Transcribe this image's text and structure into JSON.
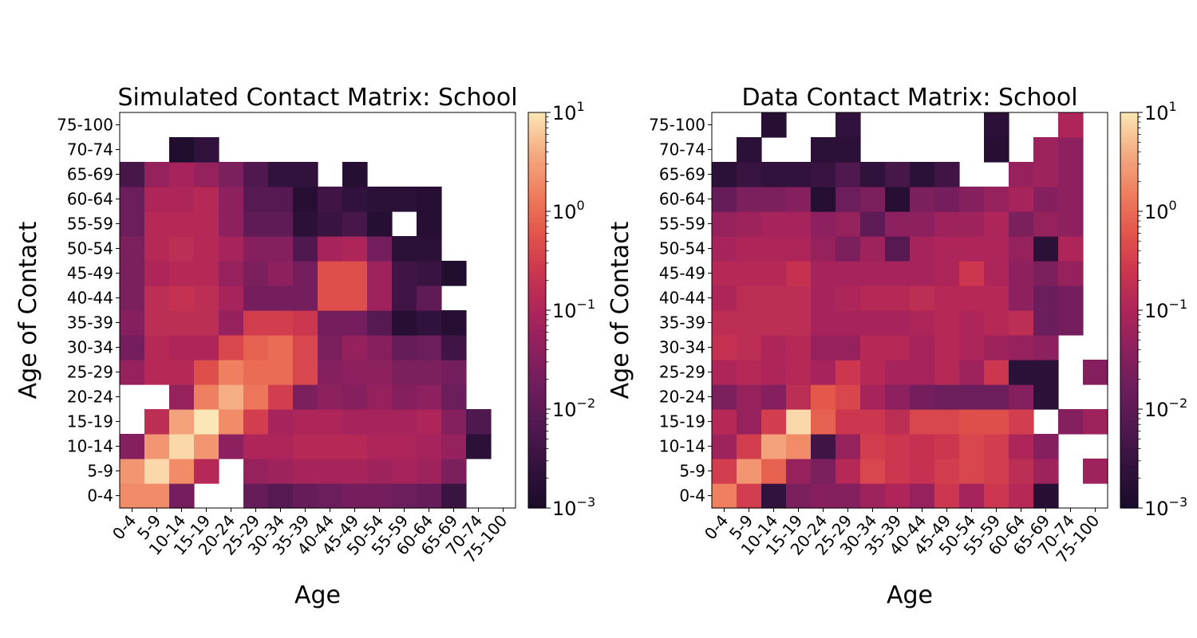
{
  "chart_data": [
    {
      "type": "heatmap",
      "title": "Simulated Contact Matrix: School",
      "xlabel": "Age",
      "ylabel": "Age of Contact",
      "categories": [
        "0-4",
        "5-9",
        "10-14",
        "15-19",
        "20-24",
        "25-29",
        "30-34",
        "35-39",
        "40-44",
        "45-49",
        "50-54",
        "55-59",
        "60-64",
        "65-69",
        "70-74",
        "75-100"
      ],
      "colorbar": {
        "scale": "log",
        "range": [
          0.001,
          10
        ],
        "ticks": [
          "10^-3",
          "10^-2",
          "10^-1",
          "10^0",
          "10^1"
        ],
        "colormap": "rocket"
      },
      "z_log10": [
        [
          0.3,
          0.3,
          -1.7,
          null,
          null,
          -1.9,
          -2.1,
          -1.9,
          -1.8,
          -1.7,
          -1.7,
          -1.8,
          -1.9,
          -2.5,
          null,
          null
        ],
        [
          0.4,
          0.9,
          0.3,
          -0.9,
          null,
          -1.3,
          -1.2,
          -1.1,
          -1.1,
          -1.1,
          -1.2,
          -1.1,
          -1.2,
          -1.6,
          null,
          null
        ],
        [
          -1.5,
          0.4,
          0.9,
          0.4,
          -1.4,
          -1.0,
          -1.0,
          -0.9,
          -0.9,
          -0.9,
          -1.0,
          -1.0,
          -1.1,
          -1.3,
          -2.7,
          null
        ],
        [
          null,
          -0.8,
          0.5,
          1.0,
          0.3,
          -0.5,
          -1.1,
          -1.0,
          -1.0,
          -1.1,
          -1.1,
          -1.1,
          -1.0,
          -1.5,
          -2.2,
          null
        ],
        [
          null,
          null,
          -1.3,
          0.2,
          0.6,
          0.1,
          -0.5,
          -1.6,
          -1.4,
          -1.5,
          -1.3,
          -1.5,
          -1.4,
          -1.8,
          null,
          null
        ],
        [
          -1.3,
          -0.9,
          -0.9,
          -0.3,
          0.2,
          0.0,
          0.0,
          -0.4,
          -1.5,
          -1.4,
          -1.4,
          -1.6,
          -1.6,
          -1.7,
          null,
          null
        ],
        [
          -1.7,
          -0.9,
          -1.0,
          -1.0,
          -0.4,
          -0.1,
          0.0,
          -0.4,
          -1.6,
          -1.3,
          -1.5,
          -1.9,
          -1.8,
          -2.4,
          null,
          null
        ],
        [
          -1.5,
          -0.8,
          -0.8,
          -0.8,
          -1.3,
          -0.5,
          -0.5,
          -0.6,
          -1.7,
          -1.7,
          -2.1,
          -2.8,
          -2.6,
          -2.8,
          null,
          null
        ],
        [
          -1.6,
          -0.8,
          -0.7,
          -0.8,
          -1.1,
          -1.7,
          -1.7,
          -1.7,
          -0.3,
          -0.3,
          -1.2,
          -2.4,
          -2.0,
          null,
          null,
          null
        ],
        [
          -1.6,
          -1.0,
          -0.9,
          -0.9,
          -1.3,
          -1.6,
          -1.4,
          -1.7,
          -0.3,
          -0.3,
          -1.2,
          -2.4,
          -2.5,
          -2.9,
          null,
          null
        ],
        [
          -1.6,
          -0.9,
          -0.8,
          -0.9,
          -1.1,
          -1.5,
          -1.5,
          -2.2,
          -1.1,
          -1.0,
          -1.7,
          -2.7,
          -2.7,
          null,
          null,
          null
        ],
        [
          -1.8,
          -0.9,
          -0.9,
          -0.9,
          -1.4,
          -2.0,
          -2.0,
          -2.7,
          -2.5,
          -2.3,
          -2.8,
          null,
          -2.8,
          null,
          null,
          null
        ],
        [
          -1.8,
          -1.0,
          -1.0,
          -0.9,
          -1.4,
          -2.1,
          -2.1,
          -2.8,
          -2.4,
          -2.6,
          -2.7,
          -2.7,
          -2.8,
          null,
          null,
          null
        ],
        [
          -2.3,
          -1.3,
          -1.1,
          -1.3,
          -1.6,
          -2.2,
          -2.6,
          -2.6,
          null,
          -2.8,
          null,
          null,
          null,
          null,
          null,
          null
        ],
        [
          null,
          null,
          -2.9,
          -2.6,
          null,
          null,
          null,
          null,
          null,
          null,
          null,
          null,
          null,
          null,
          null,
          null
        ],
        [
          null,
          null,
          null,
          null,
          null,
          null,
          null,
          null,
          null,
          null,
          null,
          null,
          null,
          null,
          null,
          null
        ]
      ]
    },
    {
      "type": "heatmap",
      "title": "Data Contact Matrix: School",
      "xlabel": "Age",
      "ylabel": "Age of Contact",
      "categories": [
        "0-4",
        "5-9",
        "10-14",
        "15-19",
        "20-24",
        "25-29",
        "30-34",
        "35-39",
        "40-44",
        "45-49",
        "50-54",
        "55-59",
        "60-64",
        "65-69",
        "70-74",
        "75-100"
      ],
      "colorbar": {
        "scale": "log",
        "range": [
          0.001,
          10
        ],
        "ticks": [
          "10^-3",
          "10^-2",
          "10^-1",
          "10^0",
          "10^1"
        ],
        "colormap": "rocket"
      },
      "z_log10": [
        [
          0.2,
          -0.5,
          -2.6,
          -1.6,
          -1.5,
          -1.5,
          -1.2,
          -1.0,
          -1.3,
          -0.6,
          -1.1,
          -0.6,
          -0.9,
          -2.8,
          null,
          null
        ],
        [
          -0.5,
          0.4,
          -0.1,
          -1.3,
          -1.6,
          -0.9,
          -0.4,
          -0.6,
          -0.7,
          -0.5,
          -0.4,
          -0.5,
          -0.8,
          -1.2,
          null,
          -1.2
        ],
        [
          -1.2,
          -0.5,
          0.5,
          0.3,
          -2.4,
          -1.3,
          -0.5,
          -0.6,
          -0.7,
          -0.6,
          -0.4,
          -0.5,
          -1.0,
          -1.5,
          null,
          null
        ],
        [
          -0.9,
          -1.3,
          -0.5,
          0.9,
          -0.1,
          -0.6,
          -0.6,
          -0.8,
          -0.4,
          -0.4,
          -0.3,
          -0.3,
          -0.5,
          null,
          -1.5,
          -1.2
        ],
        [
          -1.6,
          -1.3,
          -1.5,
          -0.8,
          -0.2,
          -0.4,
          -1.1,
          -1.4,
          -1.7,
          -1.8,
          -1.8,
          -1.8,
          -1.5,
          -2.7,
          null,
          null
        ],
        [
          -1.0,
          -0.9,
          -1.0,
          -0.9,
          -1.1,
          -0.6,
          -0.9,
          -1.1,
          -1.1,
          -0.9,
          -1.2,
          -0.6,
          -2.7,
          -2.7,
          null,
          -1.5
        ],
        [
          -0.7,
          -0.8,
          -1.0,
          -0.9,
          -1.3,
          -1.3,
          -0.9,
          -0.9,
          -1.1,
          -0.9,
          -1.0,
          -1.2,
          -1.3,
          -1.4,
          null,
          null
        ],
        [
          -0.8,
          -0.8,
          -0.8,
          -0.8,
          -1.1,
          -1.1,
          -1.1,
          -1.1,
          -1.0,
          -0.9,
          -1.0,
          -0.9,
          -0.8,
          -1.8,
          -1.7,
          null
        ],
        [
          -1.0,
          -0.8,
          -0.8,
          -0.8,
          -1.1,
          -1.0,
          -0.9,
          -0.9,
          -0.8,
          -0.9,
          -0.9,
          -0.9,
          -1.4,
          -1.8,
          -1.7,
          null
        ],
        [
          -0.9,
          -0.9,
          -0.9,
          -0.7,
          -1.1,
          -1.1,
          -1.1,
          -1.1,
          -1.1,
          -1.0,
          -0.6,
          -1.0,
          -1.4,
          -1.6,
          -1.3,
          null
        ],
        [
          -1.1,
          -1.0,
          -1.0,
          -1.0,
          -1.3,
          -1.6,
          -1.2,
          -2.1,
          -1.1,
          -1.0,
          -1.0,
          -1.0,
          -1.3,
          -2.7,
          -1.0,
          null
        ],
        [
          -1.3,
          -1.2,
          -1.1,
          -1.1,
          -1.4,
          -1.3,
          -2.0,
          -1.4,
          -1.4,
          -1.2,
          -1.2,
          -1.0,
          -1.6,
          -1.3,
          -1.4,
          null
        ],
        [
          -1.9,
          -1.6,
          -1.6,
          -1.5,
          -2.8,
          -1.8,
          -1.6,
          -2.8,
          -1.6,
          -1.7,
          -1.5,
          -1.3,
          -1.1,
          -1.5,
          -1.4,
          null
        ],
        [
          -2.7,
          -2.5,
          -2.6,
          -2.6,
          -2.5,
          -2.2,
          -2.6,
          -2.3,
          -2.7,
          -2.4,
          null,
          null,
          -1.3,
          -1.2,
          -1.4,
          null
        ],
        [
          null,
          -2.7,
          null,
          null,
          -2.7,
          -2.7,
          null,
          null,
          null,
          null,
          null,
          -2.8,
          null,
          -1.2,
          -1.4,
          null
        ],
        [
          null,
          null,
          -2.8,
          null,
          null,
          -2.6,
          null,
          null,
          null,
          null,
          null,
          -2.7,
          null,
          null,
          -1.0,
          null
        ]
      ]
    }
  ]
}
